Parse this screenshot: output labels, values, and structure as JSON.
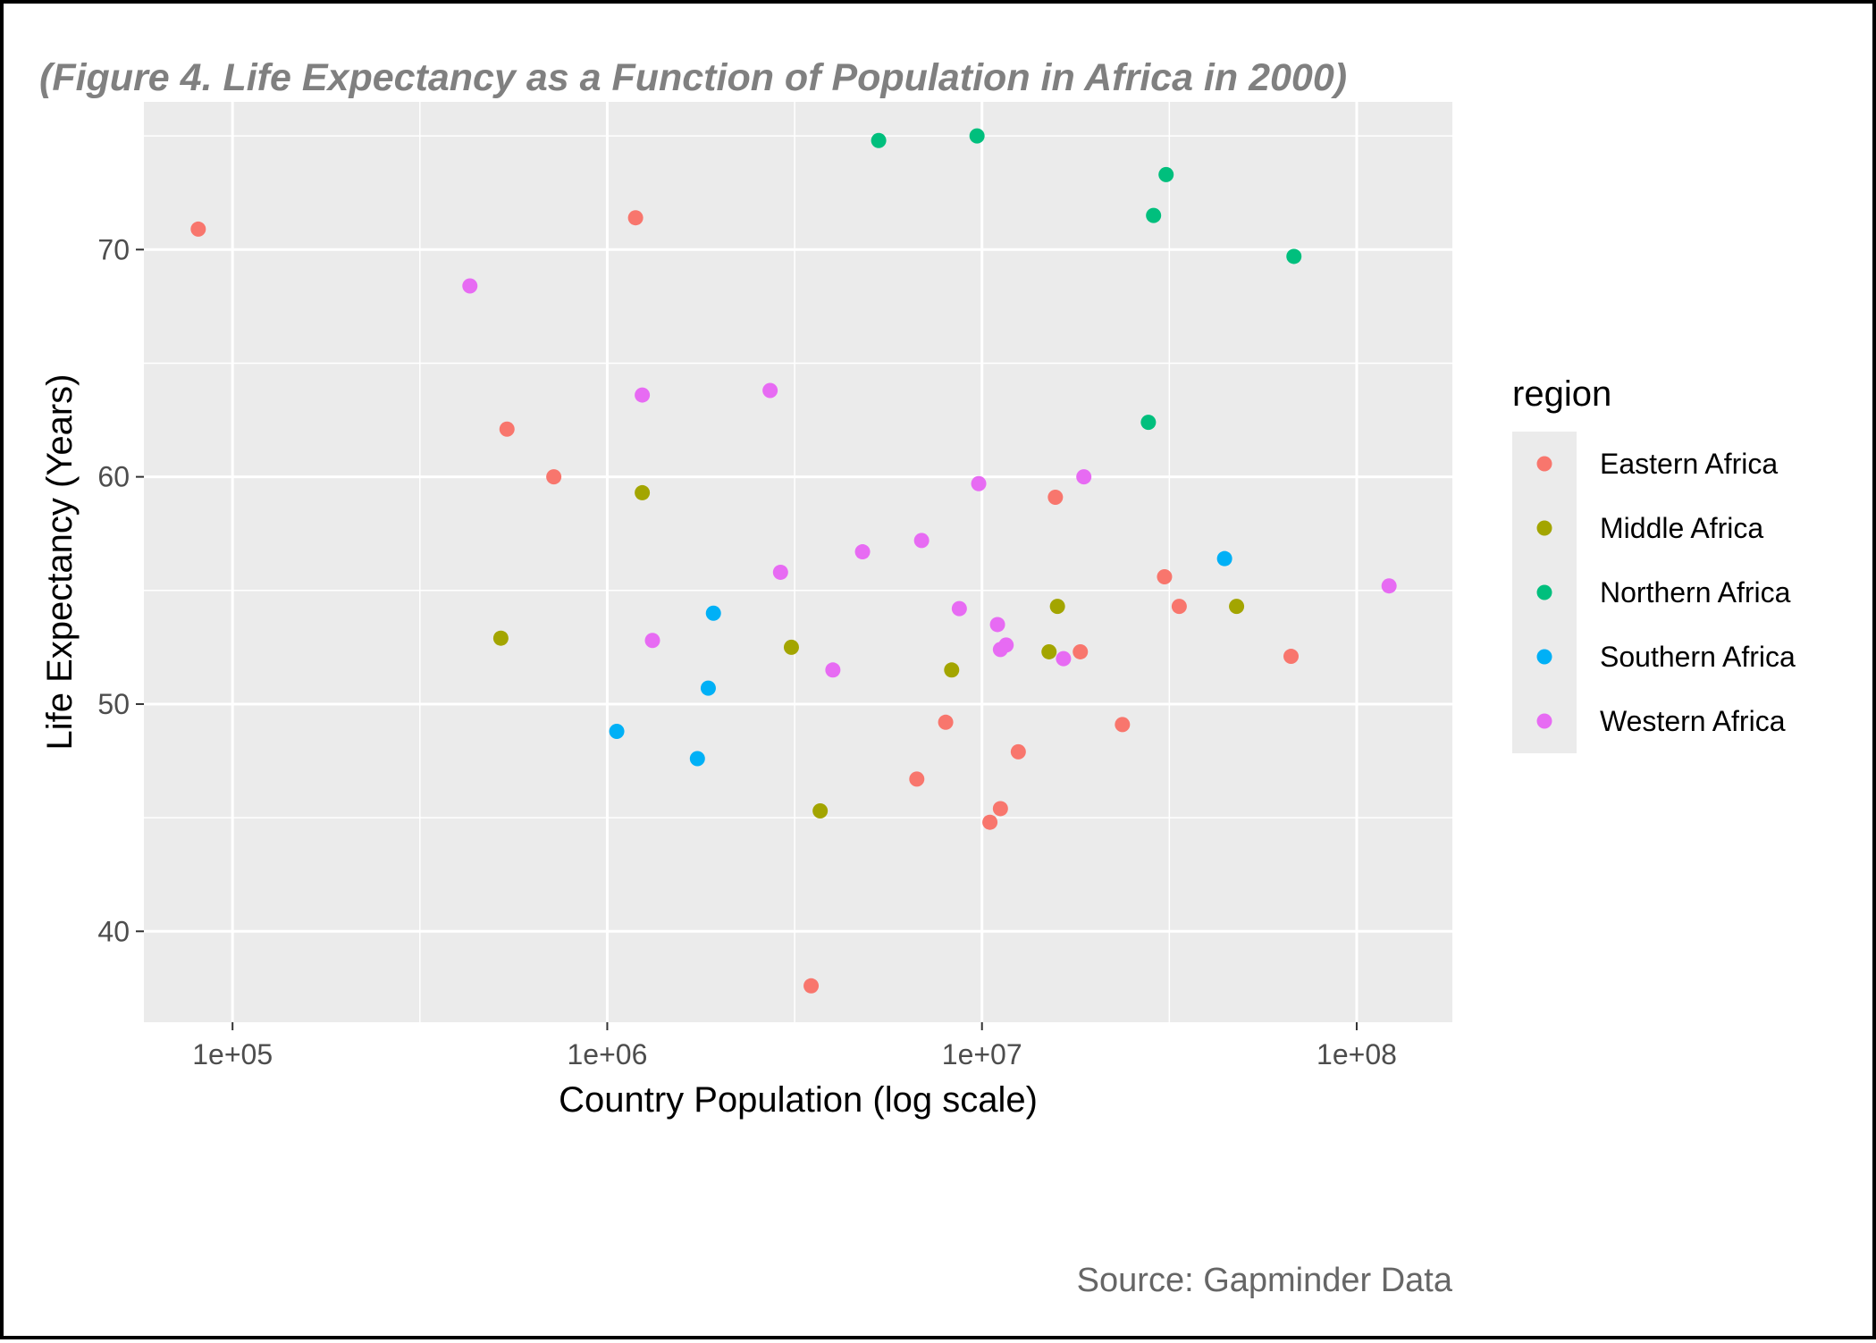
{
  "chart_data": {
    "type": "scatter",
    "title": "(Figure 4. Life Expectancy as a Function of Population in Africa in 2000)",
    "xlabel": "Country Population (log scale)",
    "ylabel": "Life Expectancy (Years)",
    "caption": "Source: Gapminder Data",
    "x_scale": "log10",
    "xlim": [
      58000,
      180000000
    ],
    "ylim": [
      36,
      76.5
    ],
    "x_ticks": [
      {
        "value": 100000,
        "label": "1e+05"
      },
      {
        "value": 1000000,
        "label": "1e+06"
      },
      {
        "value": 10000000,
        "label": "1e+07"
      },
      {
        "value": 100000000,
        "label": "1e+08"
      }
    ],
    "y_ticks": [
      {
        "value": 40,
        "label": "40"
      },
      {
        "value": 50,
        "label": "50"
      },
      {
        "value": 60,
        "label": "60"
      },
      {
        "value": 70,
        "label": "70"
      }
    ],
    "grid": true,
    "legend": {
      "title": "region",
      "position": "right"
    },
    "series": [
      {
        "name": "Eastern Africa",
        "color": "#F8766D",
        "points": [
          {
            "x": 81000,
            "y": 70.9
          },
          {
            "x": 1190000,
            "y": 71.4
          },
          {
            "x": 540000,
            "y": 62.1
          },
          {
            "x": 720000,
            "y": 60.0
          },
          {
            "x": 15700000,
            "y": 59.1
          },
          {
            "x": 30700000,
            "y": 55.6
          },
          {
            "x": 33600000,
            "y": 54.3
          },
          {
            "x": 18300000,
            "y": 52.3
          },
          {
            "x": 66800000,
            "y": 52.1
          },
          {
            "x": 8000000,
            "y": 49.2
          },
          {
            "x": 23700000,
            "y": 49.1
          },
          {
            "x": 12500000,
            "y": 47.9
          },
          {
            "x": 6700000,
            "y": 46.7
          },
          {
            "x": 11200000,
            "y": 45.4
          },
          {
            "x": 10500000,
            "y": 44.8
          },
          {
            "x": 3500000,
            "y": 37.6
          }
        ]
      },
      {
        "name": "Middle Africa",
        "color": "#A3A500",
        "points": [
          {
            "x": 1240000,
            "y": 59.3
          },
          {
            "x": 520000,
            "y": 52.9
          },
          {
            "x": 3100000,
            "y": 52.5
          },
          {
            "x": 15900000,
            "y": 54.3
          },
          {
            "x": 47800000,
            "y": 54.3
          },
          {
            "x": 15100000,
            "y": 52.3
          },
          {
            "x": 8300000,
            "y": 51.5
          },
          {
            "x": 3700000,
            "y": 45.3
          }
        ]
      },
      {
        "name": "Northern Africa",
        "color": "#00BF7D",
        "points": [
          {
            "x": 5300000,
            "y": 74.8
          },
          {
            "x": 9700000,
            "y": 75.0
          },
          {
            "x": 31000000,
            "y": 73.3
          },
          {
            "x": 28700000,
            "y": 71.5
          },
          {
            "x": 68000000,
            "y": 69.7
          },
          {
            "x": 27800000,
            "y": 62.4
          }
        ]
      },
      {
        "name": "Southern Africa",
        "color": "#00B0F6",
        "points": [
          {
            "x": 1920000,
            "y": 54.0
          },
          {
            "x": 1860000,
            "y": 50.7
          },
          {
            "x": 1060000,
            "y": 48.8
          },
          {
            "x": 1740000,
            "y": 47.6
          },
          {
            "x": 44400000,
            "y": 56.4
          }
        ]
      },
      {
        "name": "Western Africa",
        "color": "#E76BF3",
        "points": [
          {
            "x": 430000,
            "y": 68.4
          },
          {
            "x": 1240000,
            "y": 63.6
          },
          {
            "x": 2720000,
            "y": 63.8
          },
          {
            "x": 9800000,
            "y": 59.7
          },
          {
            "x": 18700000,
            "y": 60.0
          },
          {
            "x": 6900000,
            "y": 57.2
          },
          {
            "x": 4800000,
            "y": 56.7
          },
          {
            "x": 2900000,
            "y": 55.8
          },
          {
            "x": 1320000,
            "y": 52.8
          },
          {
            "x": 8700000,
            "y": 54.2
          },
          {
            "x": 11000000,
            "y": 53.5
          },
          {
            "x": 11600000,
            "y": 52.6
          },
          {
            "x": 11200000,
            "y": 52.4
          },
          {
            "x": 16500000,
            "y": 52.0
          },
          {
            "x": 4000000,
            "y": 51.5
          },
          {
            "x": 122000000,
            "y": 55.2
          }
        ]
      }
    ]
  }
}
